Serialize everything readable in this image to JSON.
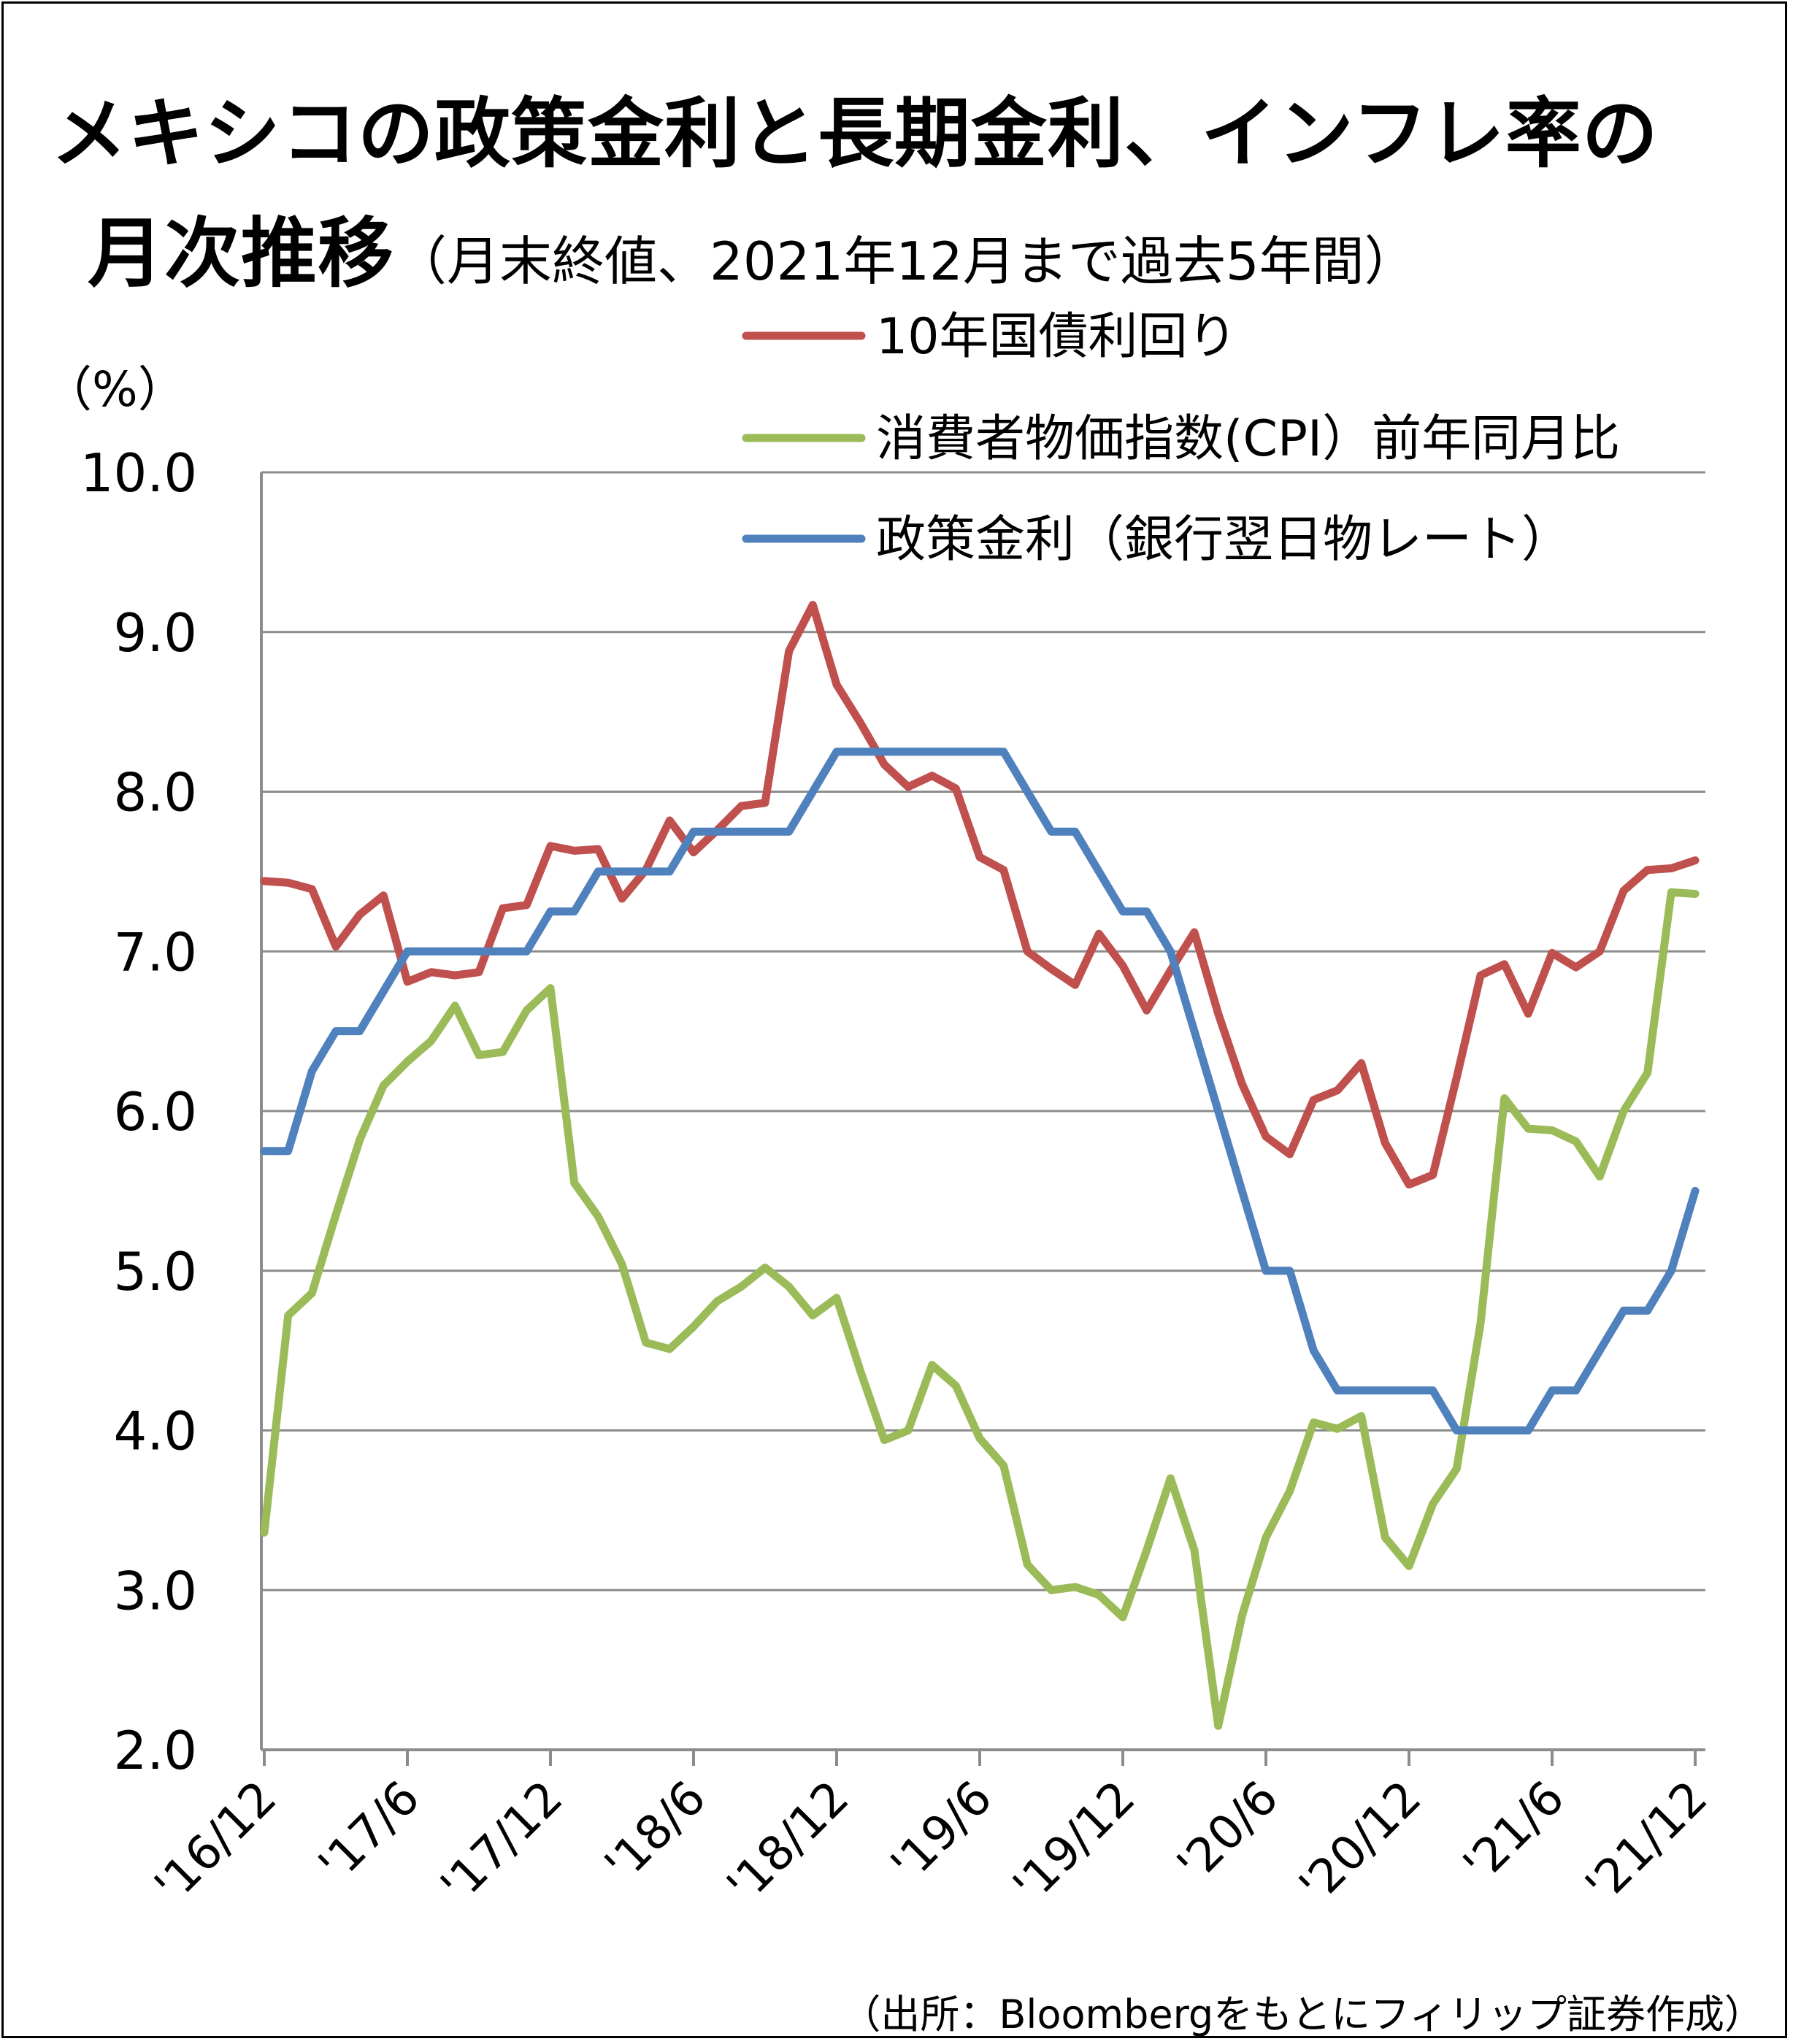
{
  "title": "メキシコの政策金利と長期金利、インフレ率の",
  "title_line2_main": "月次推移",
  "title_line2_sub": "（月末終値、2021年12月まで過去5年間）",
  "source": "（出所：Bloombergをもとにフィリップ証券作成）",
  "chart_data": {
    "type": "line",
    "title": "メキシコの政策金利と長期金利、インフレ率の月次推移（月末終値、2021年12月まで過去5年間）",
    "xlabel": "",
    "ylabel": "（%）",
    "ylim": [
      2.0,
      10.0
    ],
    "yticks": [
      "10.0",
      "9.0",
      "8.0",
      "7.0",
      "6.0",
      "5.0",
      "4.0",
      "3.0",
      "2.0"
    ],
    "xticks": [
      "'16/12",
      "'17/6",
      "'17/12",
      "'18/6",
      "'18/12",
      "'19/6",
      "'19/12",
      "'20/6",
      "'20/12",
      "'21/6",
      "'21/12"
    ],
    "x_start": "2016-12",
    "x_end": "2021-12",
    "grid": true,
    "legend_position": "top-right",
    "series": [
      {
        "name": "10年国債利回り",
        "color": "#C0504D",
        "values": [
          7.44,
          7.43,
          7.39,
          7.03,
          7.23,
          7.35,
          6.81,
          6.87,
          6.85,
          6.87,
          7.27,
          7.29,
          7.66,
          7.63,
          7.64,
          7.33,
          7.51,
          7.82,
          7.62,
          7.76,
          7.91,
          7.93,
          8.88,
          9.17,
          8.67,
          8.43,
          8.17,
          8.03,
          8.1,
          8.02,
          7.59,
          7.51,
          7.0,
          6.89,
          6.79,
          7.11,
          6.91,
          6.63,
          6.88,
          7.12,
          6.61,
          6.17,
          5.84,
          5.73,
          6.07,
          6.13,
          6.3,
          5.8,
          5.54,
          5.6,
          6.21,
          6.85,
          6.92,
          6.61,
          6.99,
          6.9,
          7.0,
          7.38,
          7.51,
          7.52,
          7.57
        ]
      },
      {
        "name": "消費者物価指数(CPI）前年同月比",
        "color": "#9BBB59",
        "values": [
          3.36,
          4.72,
          4.86,
          5.35,
          5.82,
          6.16,
          6.31,
          6.44,
          6.66,
          6.35,
          6.37,
          6.63,
          6.77,
          5.55,
          5.34,
          5.04,
          4.55,
          4.51,
          4.65,
          4.81,
          4.9,
          5.02,
          4.9,
          4.72,
          4.83,
          4.37,
          3.94,
          4.0,
          4.41,
          4.28,
          3.95,
          3.78,
          3.16,
          3.0,
          3.02,
          2.97,
          2.83,
          3.25,
          3.7,
          3.25,
          2.15,
          2.84,
          3.33,
          3.62,
          4.05,
          4.01,
          4.09,
          3.33,
          3.15,
          3.54,
          3.76,
          4.67,
          6.08,
          5.89,
          5.88,
          5.81,
          5.59,
          6.0,
          6.24,
          7.37,
          7.36
        ]
      },
      {
        "name": "政策金利（銀行翌日物レート）",
        "color": "#4F81BD",
        "values": [
          5.75,
          5.75,
          6.25,
          6.5,
          6.5,
          6.75,
          7.0,
          7.0,
          7.0,
          7.0,
          7.0,
          7.0,
          7.25,
          7.25,
          7.5,
          7.5,
          7.5,
          7.5,
          7.75,
          7.75,
          7.75,
          7.75,
          7.75,
          8.0,
          8.25,
          8.25,
          8.25,
          8.25,
          8.25,
          8.25,
          8.25,
          8.25,
          8.0,
          7.75,
          7.75,
          7.5,
          7.25,
          7.25,
          7.0,
          6.5,
          6.0,
          5.5,
          5.0,
          5.0,
          4.5,
          4.25,
          4.25,
          4.25,
          4.25,
          4.25,
          4.0,
          4.0,
          4.0,
          4.0,
          4.25,
          4.25,
          4.5,
          4.75,
          4.75,
          5.0,
          5.5
        ]
      }
    ]
  }
}
